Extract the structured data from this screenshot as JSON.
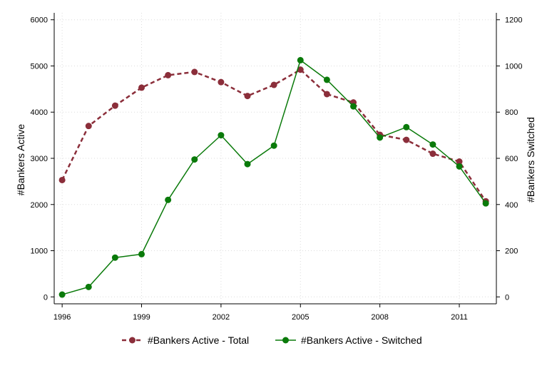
{
  "chart_data": {
    "type": "line",
    "x": [
      1996,
      1997,
      1998,
      1999,
      2000,
      2001,
      2002,
      2003,
      2004,
      2005,
      2006,
      2007,
      2008,
      2009,
      2010,
      2011,
      2012
    ],
    "series": [
      {
        "name": "#Bankers Active - Total",
        "axis": "left",
        "color": "#8b2e3a",
        "style": "dashed",
        "values": [
          2530,
          3700,
          4140,
          4530,
          4800,
          4870,
          4650,
          4350,
          4590,
          4920,
          4390,
          4210,
          3510,
          3400,
          3100,
          2930,
          2070
        ]
      },
      {
        "name": "#Bankers Active - Switched",
        "axis": "right",
        "color": "#0a7a0a",
        "style": "solid",
        "values": [
          10,
          43,
          170,
          185,
          420,
          595,
          700,
          575,
          655,
          1025,
          940,
          825,
          690,
          735,
          660,
          565,
          405
        ]
      }
    ],
    "x_ticks": [
      "1996",
      "1999",
      "2002",
      "2005",
      "2008",
      "2011"
    ],
    "x_tick_values": [
      1996,
      1999,
      2002,
      2005,
      2008,
      2011
    ],
    "y_left_ticks": [
      "0",
      "1000",
      "2000",
      "3000",
      "4000",
      "5000",
      "6000"
    ],
    "y_right_ticks": [
      "0",
      "200",
      "400",
      "600",
      "800",
      "1000",
      "1200"
    ],
    "xlim": [
      1995.7,
      2012.4
    ],
    "ylim_left": [
      -150,
      6150
    ],
    "ylim_right": [
      -30,
      1230
    ],
    "ylabel_left": "#Bankers Active",
    "ylabel_right": "#Bankers Switched",
    "grid": true,
    "legend_position": "bottom"
  }
}
